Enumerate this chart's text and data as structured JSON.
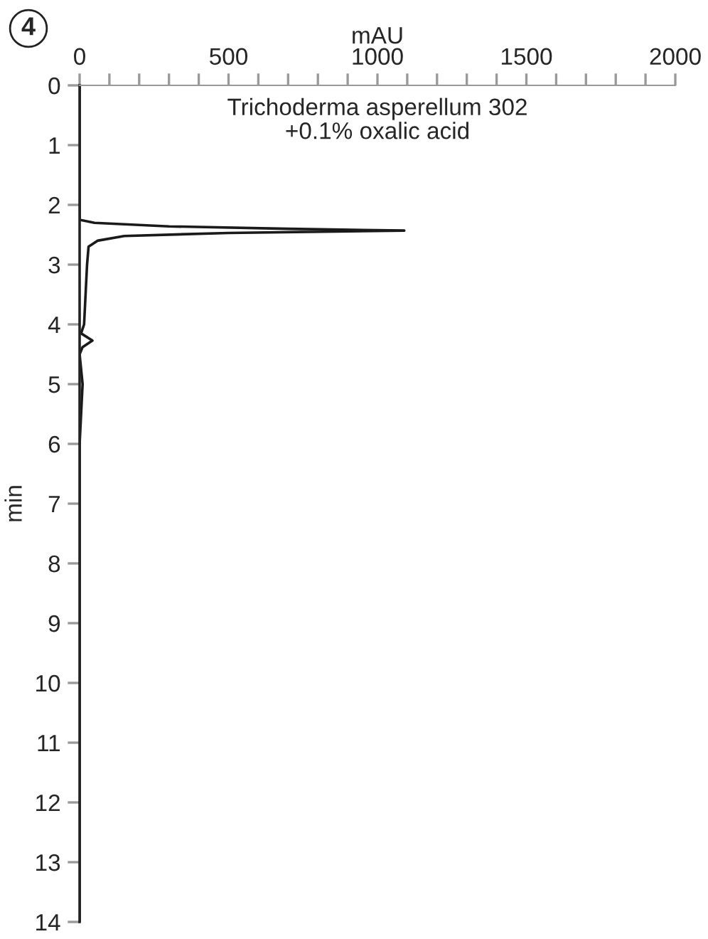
{
  "chart_data": {
    "type": "line",
    "xlabel": "mAU",
    "ylabel": "min",
    "annotations": [
      "4",
      "Trichoderma asperellum 302\n+0.1% oxalic acid"
    ],
    "series": [
      {
        "color": "#1a1a1a",
        "x": [
          0,
          0,
          50,
          300,
          700,
          1090,
          500,
          150,
          60,
          30,
          25,
          20,
          15,
          5,
          43,
          10,
          0,
          10,
          5,
          0,
          0
        ],
        "values": [
          0,
          2.25,
          2.3,
          2.36,
          2.4,
          2.43,
          2.47,
          2.52,
          2.6,
          2.7,
          3.0,
          3.5,
          4.0,
          4.15,
          4.27,
          4.38,
          4.5,
          5.0,
          5.5,
          6.0,
          14
        ]
      }
    ],
    "xlim": [
      0,
      2000
    ],
    "ylim": [
      14,
      0
    ],
    "xticks": [
      0,
      {
        "value": 100,
        "label": null
      },
      {
        "value": 200,
        "label": null
      },
      {
        "value": 300,
        "label": null
      },
      {
        "value": 400,
        "label": null
      },
      500,
      {
        "value": 600,
        "label": null
      },
      {
        "value": 700,
        "label": null
      },
      {
        "value": 800,
        "label": null
      },
      {
        "value": 900,
        "label": null
      },
      1000,
      {
        "value": 1100,
        "label": null
      },
      {
        "value": 1200,
        "label": null
      },
      {
        "value": 1300,
        "label": null
      },
      {
        "value": 1400,
        "label": null
      },
      1500,
      {
        "value": 1600,
        "label": null
      },
      {
        "value": 1700,
        "label": null
      },
      {
        "value": 1800,
        "label": null
      },
      {
        "value": 1900,
        "label": null
      },
      2000
    ],
    "yticks": [
      0,
      1,
      2,
      3,
      4,
      5,
      6,
      7,
      8,
      9,
      10,
      11,
      12,
      13,
      14
    ],
    "grid": false,
    "legend": false
  }
}
